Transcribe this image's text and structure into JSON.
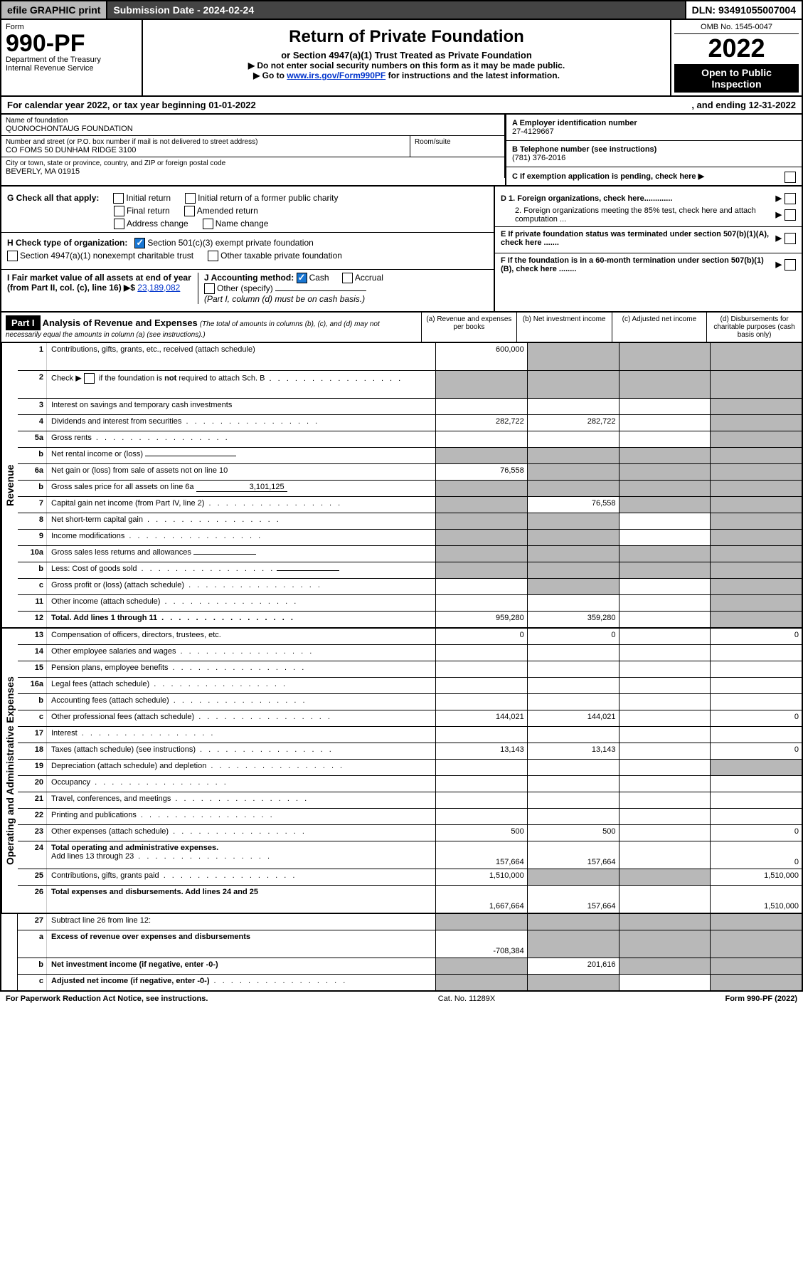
{
  "topBar": {
    "efile": "efile GRAPHIC print",
    "subDate": "Submission Date - 2024-02-24",
    "dln": "DLN: 93491055007004"
  },
  "header": {
    "formLabel": "Form",
    "formNum": "990-PF",
    "dept": "Department of the Treasury",
    "irs": "Internal Revenue Service",
    "title": "Return of Private Foundation",
    "subtitle": "or Section 4947(a)(1) Trust Treated as Private Foundation",
    "note1": "▶ Do not enter social security numbers on this form as it may be made public.",
    "note2": "▶ Go to ",
    "link": "www.irs.gov/Form990PF",
    "note3": " for instructions and the latest information.",
    "omb": "OMB No. 1545-0047",
    "year": "2022",
    "openPub": "Open to Public Inspection"
  },
  "calYear": {
    "left": "For calendar year 2022, or tax year beginning 01-01-2022",
    "right": ", and ending 12-31-2022"
  },
  "info": {
    "nameLbl": "Name of foundation",
    "name": "QUONOCHONTAUG FOUNDATION",
    "addrLbl": "Number and street (or P.O. box number if mail is not delivered to street address)",
    "addr": "CO FOMS 50 DUNHAM RIDGE 3100",
    "roomLbl": "Room/suite",
    "cityLbl": "City or town, state or province, country, and ZIP or foreign postal code",
    "city": "BEVERLY, MA  01915",
    "einLbl": "A Employer identification number",
    "ein": "27-4129667",
    "phoneLbl": "B Telephone number (see instructions)",
    "phone": "(781) 376-2016",
    "cLbl": "C If exemption application is pending, check here",
    "d1": "D 1. Foreign organizations, check here.............",
    "d2": "2. Foreign organizations meeting the 85% test, check here and attach computation ...",
    "eLbl": "E  If private foundation status was terminated under section 507(b)(1)(A), check here .......",
    "fLbl": "F  If the foundation is in a 60-month termination under section 507(b)(1)(B), check here ........"
  },
  "checks": {
    "gLabel": "G Check all that apply:",
    "initial": "Initial return",
    "initialFormer": "Initial return of a former public charity",
    "final": "Final return",
    "amended": "Amended return",
    "addrChange": "Address change",
    "nameChange": "Name change",
    "hLabel": "H Check type of organization:",
    "s501c3": "Section 501(c)(3) exempt private foundation",
    "s4947": "Section 4947(a)(1) nonexempt charitable trust",
    "otherTaxable": "Other taxable private foundation",
    "iLabel": "I Fair market value of all assets at end of year (from Part II, col. (c), line 16)",
    "iAmount": "23,189,082",
    "jLabel": "J Accounting method:",
    "cash": "Cash",
    "accrual": "Accrual",
    "otherSpec": "Other (specify)",
    "jNote": "(Part I, column (d) must be on cash basis.)"
  },
  "part1": {
    "label": "Part I",
    "title": "Analysis of Revenue and Expenses",
    "titleNote": "(The total of amounts in columns (b), (c), and (d) may not necessarily equal the amounts in column (a) (see instructions).)",
    "colA": "(a)  Revenue and expenses per books",
    "colB": "(b)  Net investment income",
    "colC": "(c)  Adjusted net income",
    "colD": "(d)  Disbursements for charitable purposes (cash basis only)"
  },
  "sideLabels": {
    "revenue": "Revenue",
    "expenses": "Operating and Administrative Expenses"
  },
  "rows": {
    "r1": {
      "n": "1",
      "d": "Contributions, gifts, grants, etc., received (attach schedule)",
      "a": "600,000"
    },
    "r2": {
      "n": "2",
      "d_pre": "Check ▶ ",
      "d_post": " if the foundation is ",
      "d_not": "not",
      "d_end": " required to attach Sch. B"
    },
    "r3": {
      "n": "3",
      "d": "Interest on savings and temporary cash investments"
    },
    "r4": {
      "n": "4",
      "d": "Dividends and interest from securities",
      "a": "282,722",
      "b": "282,722"
    },
    "r5a": {
      "n": "5a",
      "d": "Gross rents"
    },
    "r5b": {
      "n": "b",
      "d": "Net rental income or (loss)"
    },
    "r6a": {
      "n": "6a",
      "d": "Net gain or (loss) from sale of assets not on line 10",
      "a": "76,558"
    },
    "r6b": {
      "n": "b",
      "d": "Gross sales price for all assets on line 6a",
      "val": "3,101,125"
    },
    "r7": {
      "n": "7",
      "d": "Capital gain net income (from Part IV, line 2)",
      "b": "76,558"
    },
    "r8": {
      "n": "8",
      "d": "Net short-term capital gain"
    },
    "r9": {
      "n": "9",
      "d": "Income modifications"
    },
    "r10a": {
      "n": "10a",
      "d": "Gross sales less returns and allowances"
    },
    "r10b": {
      "n": "b",
      "d": "Less: Cost of goods sold"
    },
    "r10c": {
      "n": "c",
      "d": "Gross profit or (loss) (attach schedule)"
    },
    "r11": {
      "n": "11",
      "d": "Other income (attach schedule)"
    },
    "r12": {
      "n": "12",
      "d": "Total. Add lines 1 through 11",
      "a": "959,280",
      "b": "359,280"
    },
    "r13": {
      "n": "13",
      "d": "Compensation of officers, directors, trustees, etc.",
      "a": "0",
      "b": "0",
      "dd": "0"
    },
    "r14": {
      "n": "14",
      "d": "Other employee salaries and wages"
    },
    "r15": {
      "n": "15",
      "d": "Pension plans, employee benefits"
    },
    "r16a": {
      "n": "16a",
      "d": "Legal fees (attach schedule)"
    },
    "r16b": {
      "n": "b",
      "d": "Accounting fees (attach schedule)"
    },
    "r16c": {
      "n": "c",
      "d": "Other professional fees (attach schedule)",
      "a": "144,021",
      "b": "144,021",
      "dd": "0"
    },
    "r17": {
      "n": "17",
      "d": "Interest"
    },
    "r18": {
      "n": "18",
      "d": "Taxes (attach schedule) (see instructions)",
      "a": "13,143",
      "b": "13,143",
      "dd": "0"
    },
    "r19": {
      "n": "19",
      "d": "Depreciation (attach schedule) and depletion"
    },
    "r20": {
      "n": "20",
      "d": "Occupancy"
    },
    "r21": {
      "n": "21",
      "d": "Travel, conferences, and meetings"
    },
    "r22": {
      "n": "22",
      "d": "Printing and publications"
    },
    "r23": {
      "n": "23",
      "d": "Other expenses (attach schedule)",
      "a": "500",
      "b": "500",
      "dd": "0"
    },
    "r24": {
      "n": "24",
      "d": "Total operating and administrative expenses.",
      "d2": "Add lines 13 through 23",
      "a": "157,664",
      "b": "157,664",
      "dd": "0"
    },
    "r25": {
      "n": "25",
      "d": "Contributions, gifts, grants paid",
      "a": "1,510,000",
      "dd": "1,510,000"
    },
    "r26": {
      "n": "26",
      "d": "Total expenses and disbursements. Add lines 24 and 25",
      "a": "1,667,664",
      "b": "157,664",
      "dd": "1,510,000"
    },
    "r27": {
      "n": "27",
      "d": "Subtract line 26 from line 12:"
    },
    "r27a": {
      "n": "a",
      "d": "Excess of revenue over expenses and disbursements",
      "a": "-708,384"
    },
    "r27b": {
      "n": "b",
      "d": "Net investment income (if negative, enter -0-)",
      "b": "201,616"
    },
    "r27c": {
      "n": "c",
      "d": "Adjusted net income (if negative, enter -0-)"
    }
  },
  "footer": {
    "left": "For Paperwork Reduction Act Notice, see instructions.",
    "center": "Cat. No. 11289X",
    "right": "Form 990-PF (2022)"
  }
}
